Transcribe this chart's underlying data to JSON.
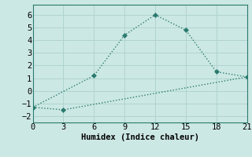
{
  "line1_x": [
    0,
    6,
    9,
    12,
    15,
    18,
    21
  ],
  "line1_y": [
    -1.3,
    1.2,
    4.4,
    6.0,
    4.8,
    1.5,
    1.1
  ],
  "line2_x": [
    0,
    3,
    21
  ],
  "line2_y": [
    -1.3,
    -1.5,
    1.1
  ],
  "color": "#2a7a6e",
  "bg_color": "#cce8e4",
  "grid_color": "#b0d4d0",
  "xlabel": "Humidex (Indice chaleur)",
  "xlim": [
    0,
    21
  ],
  "ylim": [
    -2.5,
    6.8
  ],
  "xticks": [
    0,
    3,
    6,
    9,
    12,
    15,
    18,
    21
  ],
  "yticks": [
    -2,
    -1,
    0,
    1,
    2,
    3,
    4,
    5,
    6
  ],
  "marker": "D",
  "markersize": 3,
  "linewidth": 1.0,
  "xlabel_fontsize": 7.5,
  "tick_fontsize": 7.5
}
